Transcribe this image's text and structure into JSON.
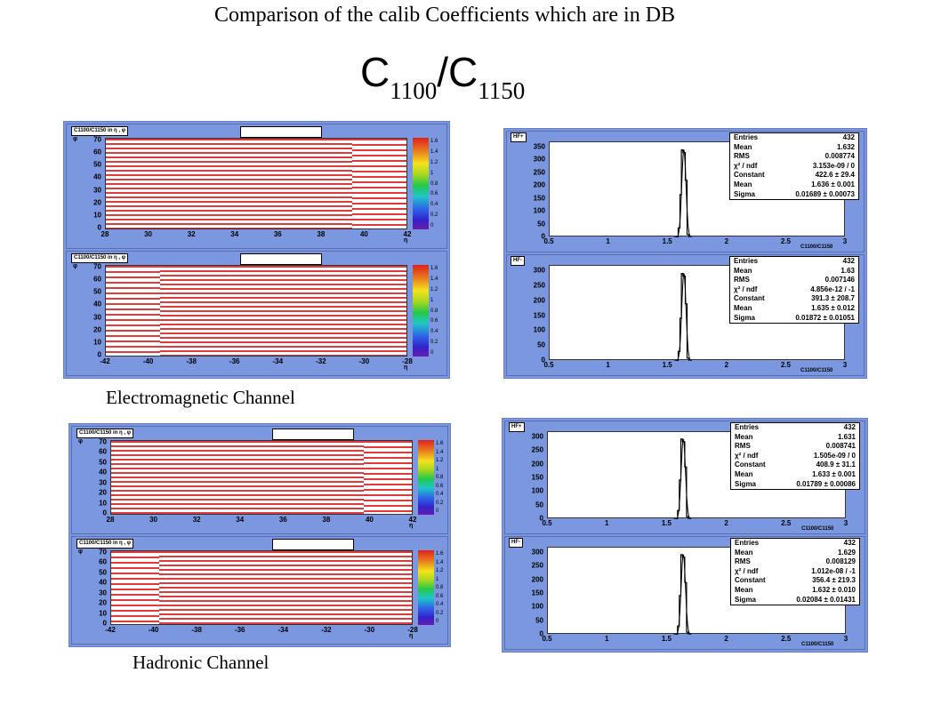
{
  "title": "Comparison of the calib Coefficients which are  in DB",
  "formula": {
    "c": "C",
    "sub1": "1100",
    "slash": "/C",
    "sub2": "1150"
  },
  "captions": {
    "em": "Electromagnetic Channel",
    "had": "Hadronic Channel"
  },
  "map_label": "C1100/C1150 in η , φ",
  "map_xunit": "η",
  "map_ylabel": "φ",
  "map_yticks": [
    "70",
    "60",
    "50",
    "40",
    "30",
    "20",
    "10",
    "0"
  ],
  "xticks_plus": [
    "28",
    "30",
    "32",
    "34",
    "36",
    "38",
    "40",
    "42"
  ],
  "xticks_minus": [
    "-42",
    "-40",
    "-38",
    "-36",
    "-34",
    "-32",
    "-30",
    "-28"
  ],
  "colorbar_ticks": [
    "1.6",
    "1.4",
    "1.2",
    "1",
    "0.8",
    "0.6",
    "0.4",
    "0.2",
    "0"
  ],
  "hist_xticks": [
    "0.5",
    "1",
    "1.5",
    "2",
    "2.5",
    "3"
  ],
  "hist_xlabel": "C1100/C1150",
  "hists": [
    {
      "tag": "HF+",
      "yticks": [
        "350",
        "300",
        "250",
        "200",
        "150",
        "100",
        "50",
        "0"
      ],
      "stats": [
        [
          "Entries",
          "432"
        ],
        [
          "Mean",
          "1.632"
        ],
        [
          "RMS",
          "0.008774"
        ],
        [
          "χ² / ndf",
          "3.153e-09 / 0"
        ],
        [
          "Constant",
          "422.6 ± 29.4"
        ],
        [
          "Mean",
          "1.636 ± 0.001"
        ],
        [
          "Sigma",
          "0.01689 ± 0.00073"
        ]
      ]
    },
    {
      "tag": "HF-",
      "yticks": [
        "300",
        "250",
        "200",
        "150",
        "100",
        "50",
        "0"
      ],
      "stats": [
        [
          "Entries",
          "432"
        ],
        [
          "Mean",
          "1.63"
        ],
        [
          "RMS",
          "0.007146"
        ],
        [
          "χ² / ndf",
          "4.856e-12 / -1"
        ],
        [
          "Constant",
          "391.3 ± 208.7"
        ],
        [
          "Mean",
          "1.635 ± 0.012"
        ],
        [
          "Sigma",
          "0.01872 ± 0.01051"
        ]
      ]
    },
    {
      "tag": "HF+",
      "yticks": [
        "300",
        "250",
        "200",
        "150",
        "100",
        "50",
        "0"
      ],
      "stats": [
        [
          "Entries",
          "432"
        ],
        [
          "Mean",
          "1.631"
        ],
        [
          "RMS",
          "0.008741"
        ],
        [
          "χ² / ndf",
          "1.505e-09 / 0"
        ],
        [
          "Constant",
          "408.9 ± 31.1"
        ],
        [
          "Mean",
          "1.633 ± 0.001"
        ],
        [
          "Sigma",
          "0.01789 ± 0.00086"
        ]
      ]
    },
    {
      "tag": "HF-",
      "yticks": [
        "300",
        "250",
        "200",
        "150",
        "100",
        "50",
        "0"
      ],
      "stats": [
        [
          "Entries",
          "432"
        ],
        [
          "Mean",
          "1.629"
        ],
        [
          "RMS",
          "0.008129"
        ],
        [
          "χ² / ndf",
          "1.012e-08 / -1"
        ],
        [
          "Constant",
          "356.4 ± 219.3"
        ],
        [
          "Mean",
          "1.632 ± 0.010"
        ],
        [
          "Sigma",
          "0.02084 ± 0.01431"
        ]
      ]
    }
  ]
}
